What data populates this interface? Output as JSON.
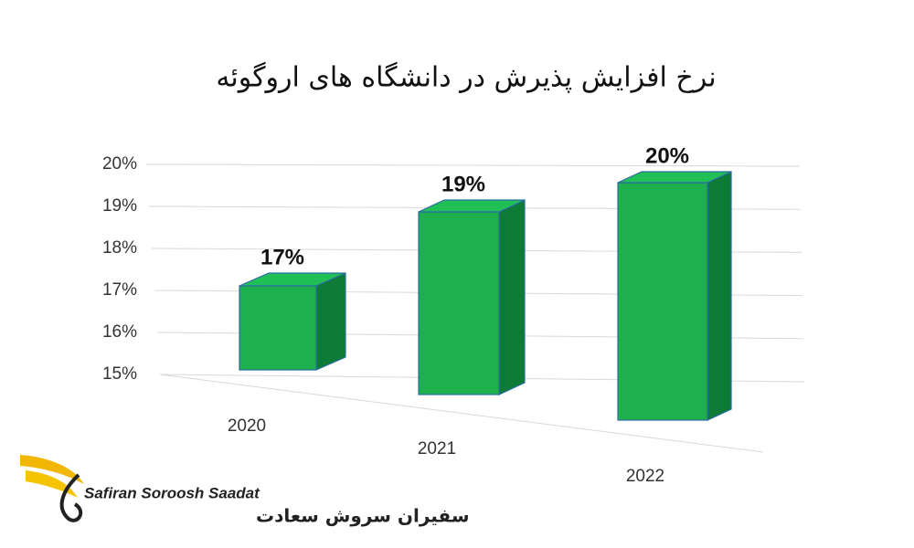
{
  "chart_data": {
    "type": "bar3d",
    "title": "نرخ افزایش پذیرش در دانشگاه های اروگوئه",
    "categories": [
      "2020",
      "2021",
      "2022"
    ],
    "values": [
      17,
      19,
      20
    ],
    "value_labels": [
      "17%",
      "19%",
      "20%"
    ],
    "color": "#1fb04e",
    "ylim": [
      15,
      20
    ],
    "yticks": [
      {
        "value": 15,
        "label": "15%"
      },
      {
        "value": 16,
        "label": "16%"
      },
      {
        "value": 17,
        "label": "17%"
      },
      {
        "value": 18,
        "label": "18%"
      },
      {
        "value": 19,
        "label": "19%"
      },
      {
        "value": 20,
        "label": "20%"
      }
    ],
    "grid": true
  },
  "logo": {
    "name": "Safiran Soroosh Saadat",
    "name_fa": "سفیران سروش سعادت"
  }
}
